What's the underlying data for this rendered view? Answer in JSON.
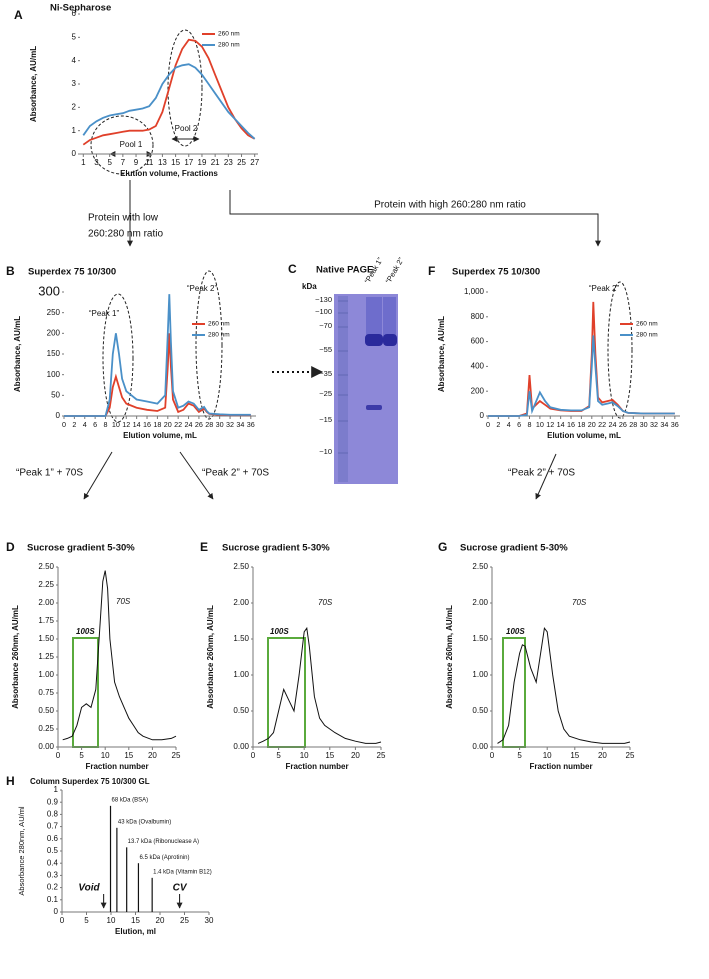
{
  "chart_data": [
    {
      "panel": "A",
      "type": "line",
      "title": "Ni-Sepharose",
      "y_label": "Absorbance, AU/mL",
      "x_label": "Elution volume, Fractions",
      "x": [
        1,
        2,
        3,
        4,
        5,
        6,
        7,
        8,
        9,
        10,
        11,
        12,
        13,
        14,
        15,
        16,
        17,
        18,
        19,
        20,
        21,
        22,
        23,
        24,
        25,
        26,
        27
      ],
      "series": [
        {
          "name": "260 nm",
          "color": "#e0402a",
          "values": [
            0.4,
            0.6,
            0.7,
            0.8,
            0.85,
            0.9,
            0.95,
            1.0,
            1.0,
            1.0,
            1.05,
            1.2,
            1.8,
            2.8,
            3.8,
            4.5,
            4.9,
            4.85,
            4.6,
            4.1,
            3.4,
            2.7,
            2.0,
            1.5,
            1.1,
            0.8,
            0.65
          ]
        },
        {
          "name": "280 nm",
          "color": "#4a90c8",
          "values": [
            0.8,
            1.2,
            1.4,
            1.55,
            1.65,
            1.7,
            1.75,
            1.85,
            1.9,
            1.95,
            2.05,
            2.4,
            3.0,
            3.4,
            3.7,
            3.8,
            3.85,
            3.7,
            3.4,
            3.0,
            2.6,
            2.2,
            1.8,
            1.5,
            1.2,
            0.9,
            0.65
          ]
        }
      ],
      "xlim": [
        0.5,
        27.5
      ],
      "xticks": [
        1,
        3,
        5,
        7,
        9,
        11,
        13,
        15,
        17,
        19,
        21,
        23,
        25,
        27
      ],
      "ylim": [
        0,
        6
      ],
      "yticks": [
        0,
        1,
        2,
        3,
        4,
        5,
        6
      ],
      "legend": "upper right",
      "annotations": [
        "Pool 1",
        "Pool 2"
      ]
    },
    {
      "panel": "B",
      "type": "line",
      "title": "Superdex 75 10/300",
      "y_label": "Absorbance, AU/mL",
      "x_label": "Elution volume, mL",
      "x": [
        0,
        4,
        8,
        8.8,
        9.4,
        10,
        10.6,
        11.2,
        12,
        14,
        16,
        18,
        19.5,
        20,
        20.3,
        20.6,
        21,
        22,
        23,
        24,
        25,
        26,
        27,
        27.5,
        28,
        30,
        32,
        36
      ],
      "series": [
        {
          "name": "260 nm",
          "color": "#e0402a",
          "values": [
            0,
            0,
            0,
            20,
            70,
            95,
            70,
            45,
            30,
            20,
            15,
            12,
            20,
            120,
            200,
            120,
            40,
            10,
            15,
            30,
            25,
            10,
            18,
            10,
            5,
            3,
            2,
            2
          ]
        },
        {
          "name": "280 nm",
          "color": "#4a90c8",
          "values": [
            0,
            0,
            0,
            40,
            150,
            200,
            150,
            90,
            60,
            40,
            35,
            30,
            50,
            200,
            295,
            180,
            60,
            20,
            25,
            35,
            30,
            15,
            22,
            12,
            6,
            4,
            3,
            3
          ]
        }
      ],
      "xlim": [
        0,
        37
      ],
      "xticks": [
        0,
        2,
        4,
        6,
        8,
        10,
        12,
        14,
        16,
        18,
        20,
        22,
        24,
        26,
        28,
        30,
        32,
        34,
        36
      ],
      "ylim": [
        0,
        300
      ],
      "yticks": [
        0,
        50,
        100,
        150,
        200,
        250,
        300
      ],
      "legend": "upper right",
      "annotations": [
        "“Peak 1”",
        "“Peak 2”"
      ]
    },
    {
      "panel": "F",
      "type": "line",
      "title": "Superdex 75 10/300",
      "y_label": "Absorbance, AU/mL",
      "x_label": "Elution volume, mL",
      "x": [
        0,
        6,
        7.5,
        8,
        8.5,
        9,
        10,
        11,
        12,
        14,
        16,
        18,
        19.5,
        20,
        20.3,
        20.7,
        21.2,
        22,
        23,
        24,
        25,
        26,
        27,
        30,
        36
      ],
      "series": [
        {
          "name": "260 nm",
          "color": "#e0402a",
          "values": [
            0,
            0,
            20,
            330,
            60,
            80,
            120,
            90,
            60,
            45,
            40,
            40,
            80,
            500,
            920,
            500,
            150,
            110,
            120,
            130,
            90,
            40,
            25,
            20,
            20
          ]
        },
        {
          "name": "280 nm",
          "color": "#4a90c8",
          "values": [
            0,
            0,
            10,
            200,
            40,
            90,
            190,
            120,
            70,
            50,
            45,
            45,
            70,
            400,
            650,
            400,
            120,
            90,
            100,
            110,
            80,
            40,
            25,
            20,
            20
          ]
        }
      ],
      "xlim": [
        0,
        37
      ],
      "xticks": [
        0,
        2,
        4,
        6,
        8,
        10,
        12,
        14,
        16,
        18,
        20,
        22,
        24,
        26,
        28,
        30,
        32,
        34,
        36
      ],
      "ylim": [
        0,
        1000
      ],
      "yticks": [
        0,
        200,
        400,
        600,
        800,
        {
          "value": 1000,
          "label": "1,000"
        }
      ],
      "legend": "upper right",
      "annotations": [
        "“Peak 2”"
      ]
    },
    {
      "panel": "D",
      "type": "line",
      "title": "Sucrose gradient 5-30%",
      "y_label": "Absorbance 260nm, AU/mL",
      "x_label": "Fraction number",
      "x": [
        1,
        2,
        3,
        4,
        5,
        6,
        7,
        8,
        9,
        9.5,
        10,
        10.5,
        11,
        12,
        13,
        14,
        15,
        16,
        17,
        18,
        20,
        22,
        24,
        25
      ],
      "values": [
        0.1,
        0.12,
        0.15,
        0.3,
        0.55,
        0.6,
        0.55,
        0.8,
        1.8,
        2.3,
        2.45,
        2.2,
        1.5,
        0.9,
        0.7,
        0.55,
        0.4,
        0.3,
        0.2,
        0.15,
        0.1,
        0.1,
        0.12,
        0.15
      ],
      "color": "#111111",
      "xlim": [
        0,
        25
      ],
      "xticks": [
        0,
        5,
        10,
        15,
        20,
        25
      ],
      "ylim": [
        0,
        2.5
      ],
      "yticks": [
        {
          "value": 0,
          "label": "0.00"
        },
        {
          "value": 0.25,
          "label": "0.25"
        },
        {
          "value": 0.5,
          "label": "0.50"
        },
        {
          "value": 0.75,
          "label": "0.75"
        },
        {
          "value": 1,
          "label": "1.00"
        },
        {
          "value": 1.25,
          "label": "1.25"
        },
        {
          "value": 1.5,
          "label": "1.50"
        },
        {
          "value": 1.75,
          "label": "1.75"
        },
        {
          "value": 2,
          "label": "2.00"
        },
        {
          "value": 2.25,
          "label": "2.25"
        },
        {
          "value": 2.5,
          "label": "2.50"
        }
      ],
      "annotations": [
        "100S",
        "70S"
      ]
    },
    {
      "panel": "E",
      "type": "line",
      "title": "Sucrose gradient 5-30%",
      "y_label": "Absorbance 260nm, AU/mL",
      "x_label": "Fraction number",
      "x": [
        1,
        2,
        3,
        4,
        5,
        6,
        7,
        8,
        9,
        10,
        10.5,
        11,
        12,
        13,
        14,
        15,
        16,
        18,
        20,
        22,
        24,
        25
      ],
      "values": [
        0.05,
        0.08,
        0.12,
        0.2,
        0.5,
        0.8,
        0.65,
        0.5,
        1.0,
        1.6,
        1.65,
        1.4,
        0.7,
        0.4,
        0.3,
        0.25,
        0.2,
        0.12,
        0.08,
        0.05,
        0.05,
        0.07
      ],
      "color": "#111111",
      "xlim": [
        0,
        25
      ],
      "xticks": [
        0,
        5,
        10,
        15,
        20,
        25
      ],
      "ylim": [
        0,
        2.5
      ],
      "yticks": [
        {
          "value": 0,
          "label": "0.00"
        },
        {
          "value": 0.5,
          "label": "0.50"
        },
        {
          "value": 1,
          "label": "1.00"
        },
        {
          "value": 1.5,
          "label": "1.50"
        },
        {
          "value": 2,
          "label": "2.00"
        },
        {
          "value": 2.5,
          "label": "2.50"
        }
      ],
      "annotations": [
        "100S",
        "70S"
      ]
    },
    {
      "panel": "G",
      "type": "line",
      "title": "Sucrose gradient 5-30%",
      "y_label": "Absorbance 260nm, AU/mL",
      "x_label": "Fraction number",
      "x": [
        1,
        2,
        3,
        4,
        5,
        5.5,
        6,
        7,
        8,
        9,
        9.5,
        10,
        11,
        12,
        13,
        14,
        16,
        18,
        20,
        22,
        24,
        25
      ],
      "values": [
        0.05,
        0.1,
        0.3,
        0.9,
        1.3,
        1.42,
        1.4,
        1.1,
        0.9,
        1.4,
        1.65,
        1.6,
        1.0,
        0.5,
        0.25,
        0.15,
        0.1,
        0.07,
        0.05,
        0.05,
        0.05,
        0.07
      ],
      "color": "#111111",
      "xlim": [
        0,
        25
      ],
      "xticks": [
        0,
        5,
        10,
        15,
        20,
        25
      ],
      "ylim": [
        0,
        2.5
      ],
      "yticks": [
        {
          "value": 0,
          "label": "0.00"
        },
        {
          "value": 0.5,
          "label": "0.50"
        },
        {
          "value": 1,
          "label": "1.00"
        },
        {
          "value": 1.5,
          "label": "1.50"
        },
        {
          "value": 2,
          "label": "2.00"
        },
        {
          "value": 2.5,
          "label": "2.50"
        }
      ],
      "annotations": [
        "100S",
        "70S"
      ]
    },
    {
      "panel": "H",
      "type": "stem",
      "title": "Column Superdex 75 10/300 GL",
      "y_label": "Absorbance 280nm, AU/ml",
      "x_label": "Elution, ml",
      "x": [
        9.9,
        11.2,
        13.2,
        15.6,
        18.4
      ],
      "values": [
        0.87,
        0.69,
        0.53,
        0.4,
        0.28
      ],
      "color": "#111111",
      "peak_labels": [
        "68 kDa (BSA)",
        "43 kDa (Ovalbumin)",
        "13.7 kDa (Ribonuclease A)",
        "6.5 kDa (Aprotinin)",
        "1.4 kDa (Vitamin B12)"
      ],
      "markers": [
        {
          "label": "Void",
          "x": 8.5
        },
        {
          "label": "CV",
          "x": 24
        }
      ],
      "xlim": [
        0,
        30
      ],
      "xticks": [
        0,
        5,
        10,
        15,
        20,
        25,
        30
      ],
      "ylim": [
        0,
        1
      ],
      "yticks": [
        0,
        0.1,
        0.2,
        0.3,
        0.4,
        0.5,
        0.6,
        0.7,
        0.8,
        0.9,
        1
      ]
    }
  ],
  "gel": {
    "panel": "C",
    "title": "Native PAGE",
    "unit": "kDa",
    "markers": [
      "~130",
      "~100",
      "~70",
      "~55",
      "~35",
      "~25",
      "~15",
      "~10"
    ],
    "lanes": [
      "“Peak 1”",
      "“Peak 2”"
    ]
  },
  "flow_labels": [
    "Protein with low",
    "260:280 nm ratio",
    "Protein with high 260:280 nm ratio",
    "“Peak 1” + 70S",
    "“Peak 2” + 70S",
    "“Peak 2” + 70S"
  ]
}
